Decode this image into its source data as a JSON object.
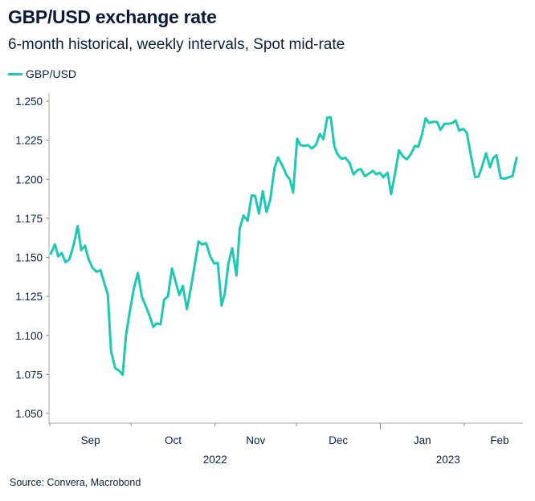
{
  "chart_data": {
    "type": "line",
    "title": "GBP/USD exchange rate",
    "subtitle": "6-month historical, weekly intervals, Spot mid-rate",
    "source": "Source: Convera, Macrobond",
    "xlabel": "",
    "ylabel": "",
    "x_unit": "days since 2022-09-01",
    "xlim": [
      0,
      175
    ],
    "ylim": [
      1.045,
      1.255
    ],
    "y_ticks": [
      1.05,
      1.075,
      1.1,
      1.125,
      1.15,
      1.175,
      1.2,
      1.225,
      1.25
    ],
    "y_tick_labels": [
      "1.050",
      "1.075",
      "1.100",
      "1.125",
      "1.150",
      "1.175",
      "1.200",
      "1.225",
      "1.250"
    ],
    "x_month_boundaries": [
      0,
      30,
      61,
      91,
      122,
      153
    ],
    "x_month_labels": [
      {
        "label": "Sep",
        "center": 15
      },
      {
        "label": "Oct",
        "center": 45.5
      },
      {
        "label": "Nov",
        "center": 76
      },
      {
        "label": "Dec",
        "center": 106.5
      },
      {
        "label": "Jan",
        "center": 137.5
      },
      {
        "label": "Feb",
        "center": 166
      }
    ],
    "x_year_labels": [
      {
        "label": "2022",
        "center": 61
      },
      {
        "label": "2023",
        "center": 147
      }
    ],
    "grid": false,
    "legend": {
      "position": "top-left",
      "entries": [
        "GBP/USD"
      ]
    },
    "series": [
      {
        "name": "GBP/USD",
        "color": "#1ec8b4",
        "x": [
          0.4,
          1.9,
          3.1,
          4.4,
          5.8,
          7.3,
          8.8,
          10.3,
          11.6,
          13,
          14.2,
          15.7,
          17.2,
          18.7,
          19.9,
          21.4,
          22.6,
          24.1,
          25.6,
          26.9,
          28.1,
          29.6,
          31,
          32.5,
          34,
          35.5,
          37,
          38.2,
          39.4,
          40.9,
          42.2,
          43.6,
          45.1,
          46.5,
          47.8,
          49.1,
          50.6,
          52.1,
          53.5,
          54.9,
          56.2,
          57.7,
          59.2,
          60.7,
          62,
          63.4,
          64.6,
          65.9,
          67.3,
          68.9,
          70.1,
          71.5,
          73,
          74.5,
          75.8,
          77.2,
          78.6,
          80,
          81.4,
          82.9,
          84.2,
          85.9,
          87.4,
          88.6,
          89.8,
          91.3,
          92.5,
          93.8,
          95.3,
          96.7,
          98.2,
          99.7,
          101,
          102.4,
          103.7,
          105,
          106.1,
          107.6,
          109.1,
          110.6,
          112.1,
          113.6,
          114.8,
          116.3,
          117.8,
          119.3,
          120.5,
          121.8,
          123.1,
          124.7,
          126,
          127.4,
          128.9,
          130.4,
          131.8,
          133.3,
          134.8,
          136,
          137.3,
          138.7,
          140,
          141.4,
          142.9,
          144.2,
          145.7,
          147.1,
          148.6,
          149.8,
          151.1,
          152.6,
          153.9,
          155.6,
          157,
          158.2,
          159.5,
          161,
          162.5,
          163.7,
          164.9,
          166.4,
          167.9,
          169.4,
          170.8,
          172.3
        ],
        "values": [
          1.1523,
          1.1583,
          1.1506,
          1.1528,
          1.1468,
          1.1489,
          1.158,
          1.17,
          1.1545,
          1.1575,
          1.1494,
          1.1434,
          1.1408,
          1.1417,
          1.1348,
          1.1262,
          1.0902,
          1.0791,
          1.0774,
          1.0748,
          1.0997,
          1.116,
          1.1297,
          1.14,
          1.1246,
          1.1185,
          1.1117,
          1.1054,
          1.1077,
          1.1071,
          1.1229,
          1.1249,
          1.1429,
          1.134,
          1.1259,
          1.1317,
          1.1168,
          1.1306,
          1.1451,
          1.1602,
          1.1583,
          1.1591,
          1.1506,
          1.146,
          1.1465,
          1.1191,
          1.1271,
          1.146,
          1.1558,
          1.1383,
          1.1683,
          1.1768,
          1.1734,
          1.1897,
          1.1893,
          1.178,
          1.1923,
          1.1791,
          1.1871,
          1.2068,
          1.214,
          1.2085,
          1.2025,
          1.2,
          1.1914,
          1.226,
          1.2219,
          1.2214,
          1.2219,
          1.2197,
          1.2219,
          1.2291,
          1.2257,
          1.2394,
          1.2397,
          1.2214,
          1.2162,
          1.2131,
          1.2137,
          1.2106,
          1.2031,
          1.2059,
          1.2065,
          1.202,
          1.2037,
          1.2054,
          1.2031,
          1.2042,
          1.2013,
          1.2042,
          1.1904,
          1.2034,
          1.2185,
          1.2145,
          1.2128,
          1.2162,
          1.2214,
          1.2208,
          1.2283,
          1.239,
          1.236,
          1.2368,
          1.2368,
          1.2316,
          1.2356,
          1.2355,
          1.236,
          1.2377,
          1.2313,
          1.2322,
          1.2299,
          1.2137,
          1.2013,
          1.2017,
          1.2077,
          1.2167,
          1.2077,
          1.2137,
          1.2154,
          1.2008,
          1.2003,
          1.2013,
          1.202,
          1.2137
        ]
      }
    ]
  }
}
